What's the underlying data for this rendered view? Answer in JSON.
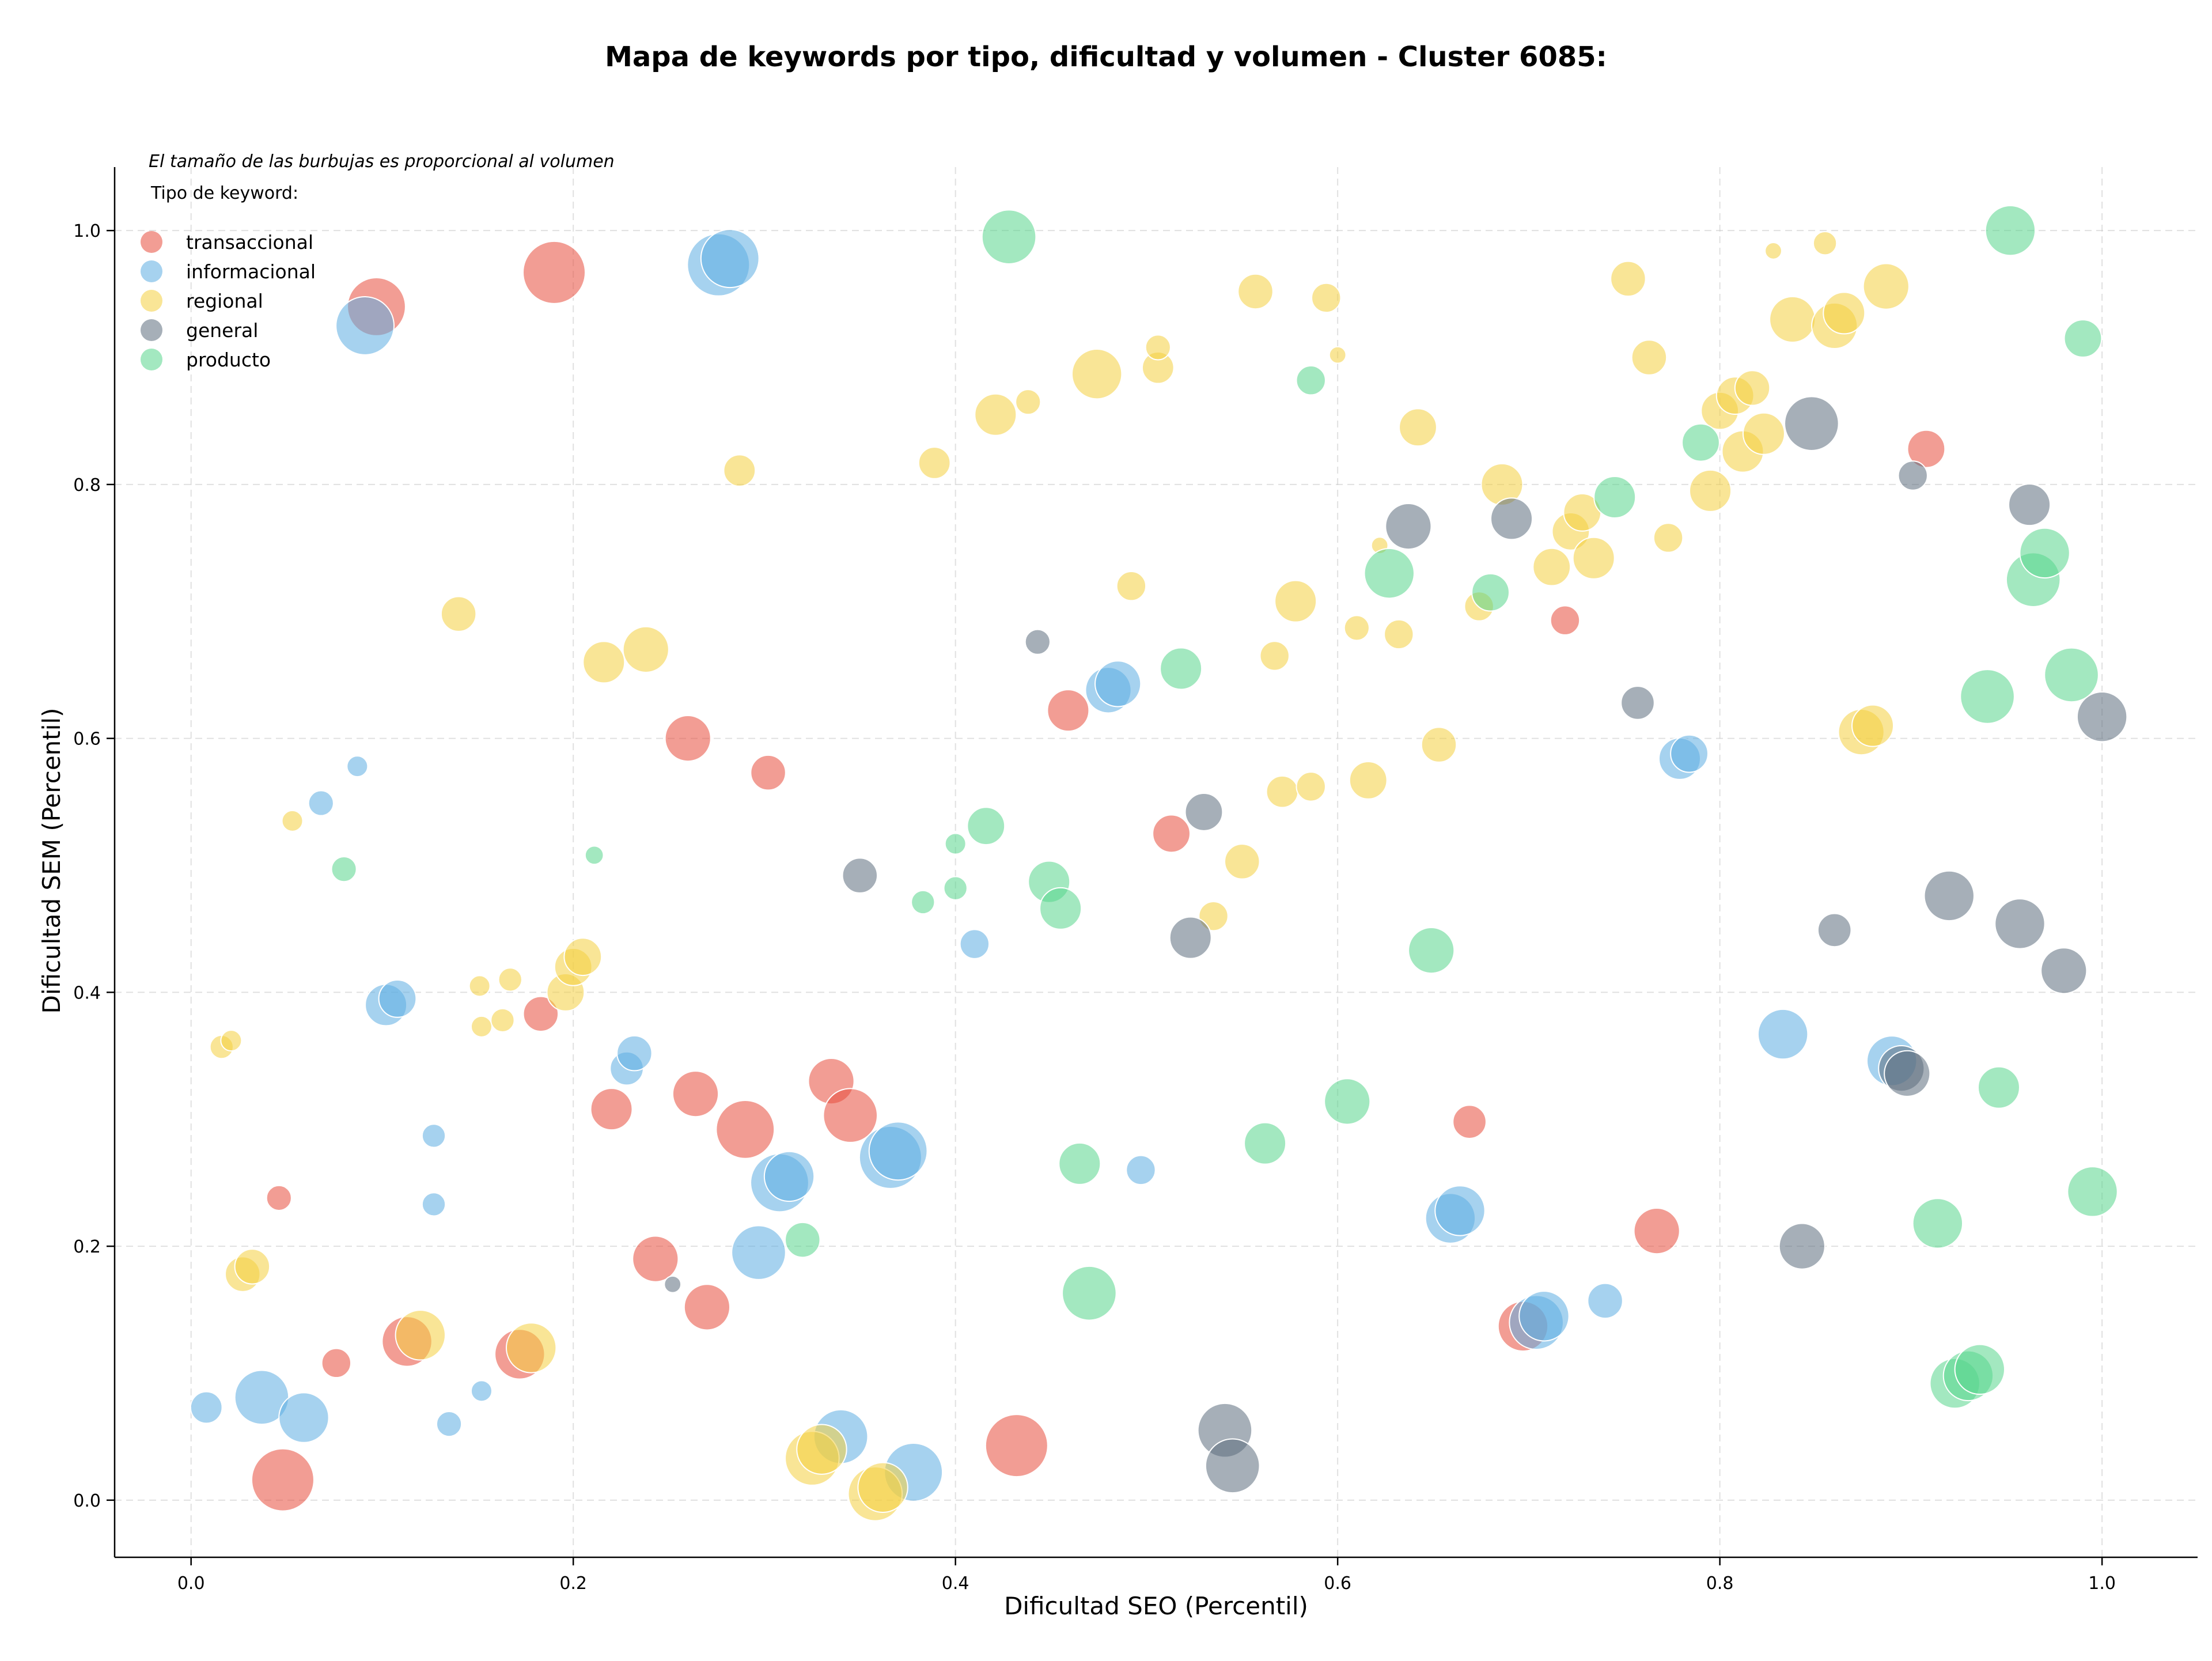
{
  "chart_data": {
    "type": "scatter",
    "title": "Mapa de keywords por tipo, dificultad y volumen - Cluster 6085:",
    "xlabel": "Dificultad SEO (Percentil)",
    "ylabel": "Dificultad SEM (Percentil)",
    "note": "El tamaño de las burbujas es proporcional al volumen",
    "xlim": [
      -0.04,
      1.05
    ],
    "ylim": [
      -0.045,
      1.05
    ],
    "xticks": [
      "0.0",
      "0.2",
      "0.4",
      "0.6",
      "0.8",
      "1.0"
    ],
    "yticks": [
      "0.0",
      "0.2",
      "0.4",
      "0.6",
      "0.8",
      "1.0"
    ],
    "grid": true,
    "legend": {
      "title": "Tipo de keyword:",
      "placement": "top-left"
    },
    "series": [
      {
        "name": "transaccional",
        "color": "#e74c3c",
        "points": [
          [
            0.097,
            0.94,
            0.7
          ],
          [
            0.19,
            0.967,
            0.75
          ],
          [
            0.26,
            0.6,
            0.55
          ],
          [
            0.302,
            0.573,
            0.42
          ],
          [
            0.183,
            0.383,
            0.42
          ],
          [
            0.046,
            0.238,
            0.3
          ],
          [
            0.22,
            0.308,
            0.5
          ],
          [
            0.264,
            0.32,
            0.55
          ],
          [
            0.29,
            0.292,
            0.7
          ],
          [
            0.335,
            0.33,
            0.55
          ],
          [
            0.345,
            0.303,
            0.65
          ],
          [
            0.243,
            0.19,
            0.55
          ],
          [
            0.27,
            0.152,
            0.55
          ],
          [
            0.113,
            0.125,
            0.6
          ],
          [
            0.172,
            0.115,
            0.6
          ],
          [
            0.076,
            0.108,
            0.35
          ],
          [
            0.048,
            0.016,
            0.75
          ],
          [
            0.432,
            0.043,
            0.75
          ],
          [
            0.459,
            0.622,
            0.5
          ],
          [
            0.513,
            0.525,
            0.45
          ],
          [
            0.719,
            0.693,
            0.35
          ],
          [
            0.908,
            0.828,
            0.45
          ],
          [
            0.669,
            0.298,
            0.4
          ],
          [
            0.767,
            0.212,
            0.55
          ],
          [
            0.697,
            0.137,
            0.6
          ]
        ]
      },
      {
        "name": "informacional",
        "color": "#5dade2",
        "points": [
          [
            0.091,
            0.925,
            0.7
          ],
          [
            0.276,
            0.973,
            0.75
          ],
          [
            0.282,
            0.978,
            0.7
          ],
          [
            0.087,
            0.578,
            0.25
          ],
          [
            0.068,
            0.549,
            0.3
          ],
          [
            0.102,
            0.39,
            0.5
          ],
          [
            0.108,
            0.395,
            0.45
          ],
          [
            0.127,
            0.287,
            0.28
          ],
          [
            0.127,
            0.233,
            0.28
          ],
          [
            0.228,
            0.34,
            0.4
          ],
          [
            0.232,
            0.352,
            0.42
          ],
          [
            0.008,
            0.073,
            0.38
          ],
          [
            0.037,
            0.081,
            0.65
          ],
          [
            0.059,
            0.065,
            0.6
          ],
          [
            0.135,
            0.06,
            0.3
          ],
          [
            0.152,
            0.086,
            0.25
          ],
          [
            0.308,
            0.25,
            0.7
          ],
          [
            0.313,
            0.255,
            0.6
          ],
          [
            0.297,
            0.195,
            0.65
          ],
          [
            0.34,
            0.05,
            0.65
          ],
          [
            0.378,
            0.022,
            0.7
          ],
          [
            0.366,
            0.27,
            0.75
          ],
          [
            0.37,
            0.275,
            0.7
          ],
          [
            0.41,
            0.438,
            0.35
          ],
          [
            0.497,
            0.26,
            0.35
          ],
          [
            0.48,
            0.638,
            0.55
          ],
          [
            0.485,
            0.643,
            0.55
          ],
          [
            0.659,
            0.222,
            0.6
          ],
          [
            0.664,
            0.228,
            0.6
          ],
          [
            0.704,
            0.14,
            0.65
          ],
          [
            0.708,
            0.145,
            0.6
          ],
          [
            0.74,
            0.157,
            0.42
          ],
          [
            0.779,
            0.584,
            0.5
          ],
          [
            0.784,
            0.588,
            0.45
          ],
          [
            0.833,
            0.367,
            0.6
          ],
          [
            0.89,
            0.346,
            0.6
          ]
        ]
      },
      {
        "name": "regional",
        "color": "#f4d03f",
        "points": [
          [
            0.016,
            0.357,
            0.28
          ],
          [
            0.021,
            0.362,
            0.25
          ],
          [
            0.027,
            0.178,
            0.42
          ],
          [
            0.032,
            0.184,
            0.42
          ],
          [
            0.053,
            0.535,
            0.25
          ],
          [
            0.14,
            0.698,
            0.42
          ],
          [
            0.151,
            0.405,
            0.25
          ],
          [
            0.152,
            0.373,
            0.25
          ],
          [
            0.163,
            0.378,
            0.28
          ],
          [
            0.167,
            0.41,
            0.28
          ],
          [
            0.196,
            0.4,
            0.45
          ],
          [
            0.2,
            0.42,
            0.45
          ],
          [
            0.205,
            0.428,
            0.45
          ],
          [
            0.216,
            0.66,
            0.5
          ],
          [
            0.238,
            0.67,
            0.55
          ],
          [
            0.12,
            0.13,
            0.6
          ],
          [
            0.178,
            0.12,
            0.6
          ],
          [
            0.287,
            0.811,
            0.38
          ],
          [
            0.325,
            0.033,
            0.65
          ],
          [
            0.33,
            0.04,
            0.6
          ],
          [
            0.358,
            0.005,
            0.65
          ],
          [
            0.362,
            0.01,
            0.6
          ],
          [
            0.389,
            0.817,
            0.38
          ],
          [
            0.421,
            0.855,
            0.5
          ],
          [
            0.438,
            0.865,
            0.3
          ],
          [
            0.474,
            0.887,
            0.6
          ],
          [
            0.492,
            0.72,
            0.35
          ],
          [
            0.506,
            0.892,
            0.38
          ],
          [
            0.506,
            0.908,
            0.3
          ],
          [
            0.535,
            0.46,
            0.35
          ],
          [
            0.55,
            0.503,
            0.42
          ],
          [
            0.557,
            0.952,
            0.42
          ],
          [
            0.567,
            0.665,
            0.35
          ],
          [
            0.571,
            0.558,
            0.38
          ],
          [
            0.578,
            0.708,
            0.5
          ],
          [
            0.586,
            0.562,
            0.35
          ],
          [
            0.594,
            0.947,
            0.35
          ],
          [
            0.6,
            0.902,
            0.2
          ],
          [
            0.61,
            0.687,
            0.3
          ],
          [
            0.616,
            0.567,
            0.45
          ],
          [
            0.622,
            0.752,
            0.2
          ],
          [
            0.632,
            0.682,
            0.35
          ],
          [
            0.642,
            0.845,
            0.45
          ],
          [
            0.653,
            0.595,
            0.42
          ],
          [
            0.674,
            0.704,
            0.35
          ],
          [
            0.686,
            0.8,
            0.5
          ],
          [
            0.712,
            0.735,
            0.45
          ],
          [
            0.722,
            0.763,
            0.45
          ],
          [
            0.728,
            0.778,
            0.45
          ],
          [
            0.734,
            0.742,
            0.5
          ],
          [
            0.752,
            0.962,
            0.42
          ],
          [
            0.763,
            0.9,
            0.42
          ],
          [
            0.773,
            0.758,
            0.35
          ],
          [
            0.795,
            0.795,
            0.5
          ],
          [
            0.8,
            0.858,
            0.45
          ],
          [
            0.808,
            0.87,
            0.45
          ],
          [
            0.812,
            0.826,
            0.5
          ],
          [
            0.817,
            0.876,
            0.42
          ],
          [
            0.823,
            0.84,
            0.5
          ],
          [
            0.828,
            0.984,
            0.2
          ],
          [
            0.838,
            0.93,
            0.55
          ],
          [
            0.855,
            0.99,
            0.28
          ],
          [
            0.86,
            0.925,
            0.55
          ],
          [
            0.865,
            0.935,
            0.5
          ],
          [
            0.887,
            0.956,
            0.55
          ],
          [
            0.874,
            0.605,
            0.55
          ],
          [
            0.88,
            0.61,
            0.5
          ]
        ]
      },
      {
        "name": "general",
        "color": "#5d6d7e",
        "points": [
          [
            0.252,
            0.17,
            0.2
          ],
          [
            0.35,
            0.492,
            0.42
          ],
          [
            0.443,
            0.676,
            0.3
          ],
          [
            0.523,
            0.443,
            0.5
          ],
          [
            0.53,
            0.542,
            0.45
          ],
          [
            0.541,
            0.055,
            0.65
          ],
          [
            0.545,
            0.027,
            0.65
          ],
          [
            0.637,
            0.767,
            0.55
          ],
          [
            0.691,
            0.773,
            0.5
          ],
          [
            0.757,
            0.628,
            0.4
          ],
          [
            0.843,
            0.2,
            0.55
          ],
          [
            0.848,
            0.848,
            0.65
          ],
          [
            0.86,
            0.449,
            0.4
          ],
          [
            0.895,
            0.34,
            0.55
          ],
          [
            0.898,
            0.336,
            0.55
          ],
          [
            0.901,
            0.807,
            0.35
          ],
          [
            0.92,
            0.476,
            0.6
          ],
          [
            0.957,
            0.454,
            0.6
          ],
          [
            0.962,
            0.784,
            0.5
          ],
          [
            0.98,
            0.417,
            0.55
          ],
          [
            1.0,
            0.617,
            0.6
          ]
        ]
      },
      {
        "name": "producto",
        "color": "#58d68d",
        "points": [
          [
            0.08,
            0.497,
            0.3
          ],
          [
            0.211,
            0.508,
            0.22
          ],
          [
            0.32,
            0.205,
            0.42
          ],
          [
            0.383,
            0.471,
            0.28
          ],
          [
            0.4,
            0.482,
            0.28
          ],
          [
            0.4,
            0.517,
            0.25
          ],
          [
            0.416,
            0.531,
            0.45
          ],
          [
            0.428,
            0.995,
            0.65
          ],
          [
            0.449,
            0.487,
            0.5
          ],
          [
            0.455,
            0.466,
            0.5
          ],
          [
            0.465,
            0.265,
            0.5
          ],
          [
            0.47,
            0.163,
            0.65
          ],
          [
            0.518,
            0.655,
            0.5
          ],
          [
            0.562,
            0.281,
            0.5
          ],
          [
            0.586,
            0.882,
            0.35
          ],
          [
            0.605,
            0.314,
            0.55
          ],
          [
            0.627,
            0.73,
            0.6
          ],
          [
            0.649,
            0.433,
            0.55
          ],
          [
            0.68,
            0.715,
            0.45
          ],
          [
            0.745,
            0.79,
            0.5
          ],
          [
            0.79,
            0.833,
            0.45
          ],
          [
            0.914,
            0.218,
            0.6
          ],
          [
            0.923,
            0.092,
            0.6
          ],
          [
            0.93,
            0.098,
            0.6
          ],
          [
            0.936,
            0.103,
            0.6
          ],
          [
            0.94,
            0.633,
            0.65
          ],
          [
            0.946,
            0.325,
            0.5
          ],
          [
            0.952,
            1.0,
            0.6
          ],
          [
            0.964,
            0.725,
            0.65
          ],
          [
            0.97,
            0.746,
            0.6
          ],
          [
            0.984,
            0.65,
            0.65
          ],
          [
            0.99,
            0.915,
            0.45
          ],
          [
            0.995,
            0.243,
            0.6
          ]
        ]
      }
    ]
  }
}
